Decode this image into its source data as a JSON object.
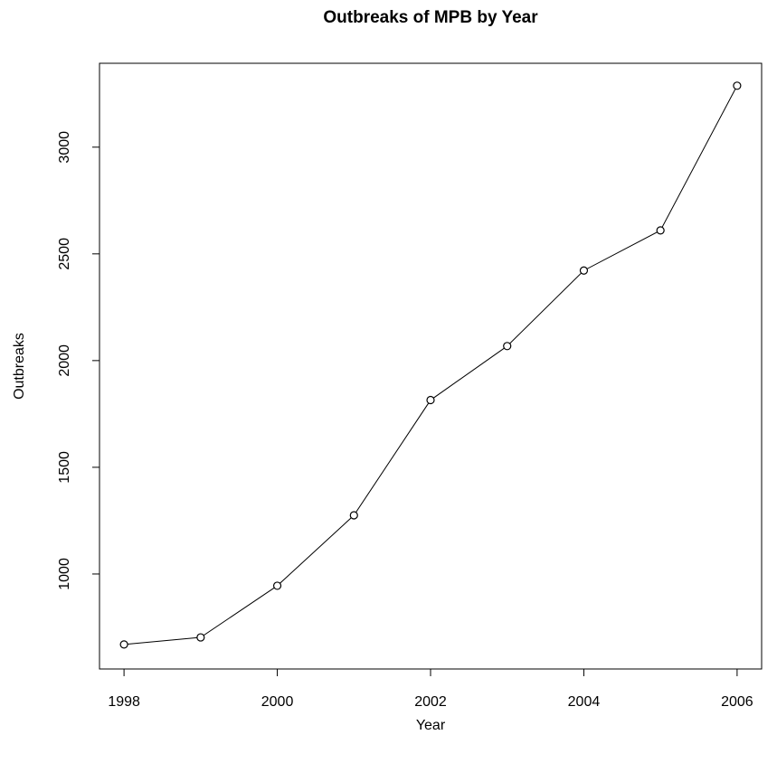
{
  "chart_data": {
    "type": "line",
    "title": "Outbreaks of MPB by Year",
    "xlabel": "Year",
    "ylabel": "Outbreaks",
    "x": [
      1998,
      1999,
      2000,
      2001,
      2002,
      2003,
      2004,
      2005,
      2006
    ],
    "series": [
      {
        "name": "Outbreaks",
        "color": "#000000",
        "values": [
          670,
          703,
          945,
          1275,
          1815,
          2068,
          2422,
          2610,
          3288
        ]
      }
    ],
    "xlim": [
      1997.68,
      2006.32
    ],
    "xticks": [
      1998,
      2000,
      2002,
      2004,
      2006
    ],
    "ylim": [
      555,
      3393
    ],
    "yticks": [
      1000,
      1500,
      2000,
      2500,
      3000
    ],
    "grid": false,
    "markers": true
  }
}
